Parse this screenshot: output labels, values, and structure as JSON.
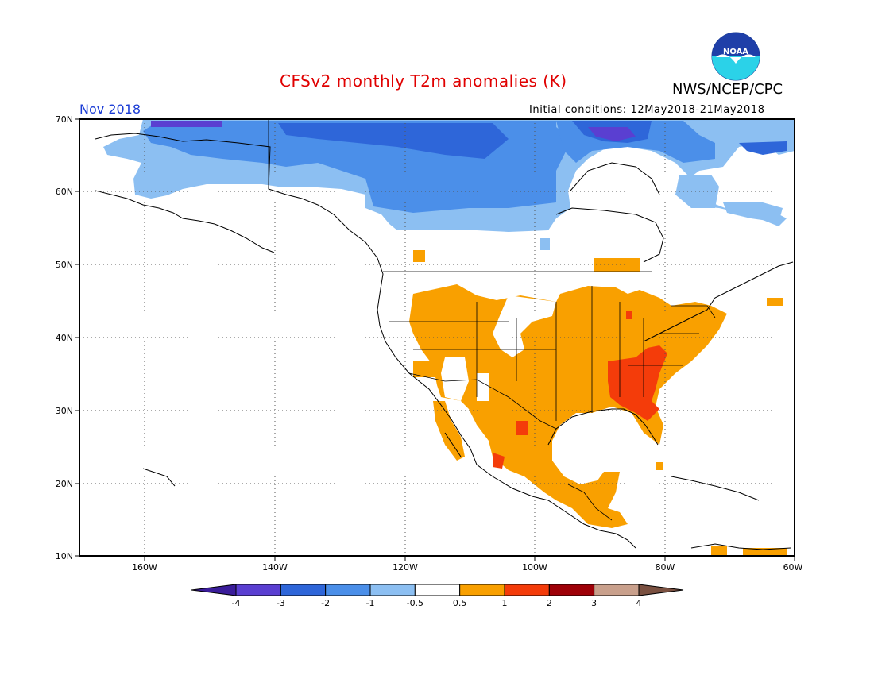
{
  "header": {
    "title": "CFSv2 monthly T2m anomalies (K)",
    "org": "NWS/NCEP/CPC",
    "month": "Nov 2018",
    "initial_conditions": "Initial conditions: 12May2018-21May2018",
    "logo_text": "NOAA"
  },
  "axes": {
    "lat_labels": [
      "70N",
      "60N",
      "50N",
      "40N",
      "30N",
      "20N",
      "10N"
    ],
    "lon_labels": [
      "160W",
      "140W",
      "120W",
      "100W",
      "80W",
      "60W"
    ]
  },
  "colorbar": {
    "labels": [
      "-4",
      "-3",
      "-2",
      "-1",
      "-0.5",
      "0.5",
      "1",
      "2",
      "3",
      "4"
    ],
    "colors": [
      "#3a1c9a",
      "#5a3fd1",
      "#2e66d9",
      "#4b8fe9",
      "#8cbff2",
      "#ffffff",
      "#f9a000",
      "#f43c0a",
      "#9e0008",
      "#c9a08c",
      "#7a5040"
    ]
  },
  "anomaly_colors": {
    "cold_strong": "#2a58d0",
    "cold": "#4b8fe9",
    "cold_weak": "#8cbff2",
    "cold_extreme": "#5a3fd1",
    "warm": "#f9a000",
    "warm_strong": "#f43c0a"
  }
}
